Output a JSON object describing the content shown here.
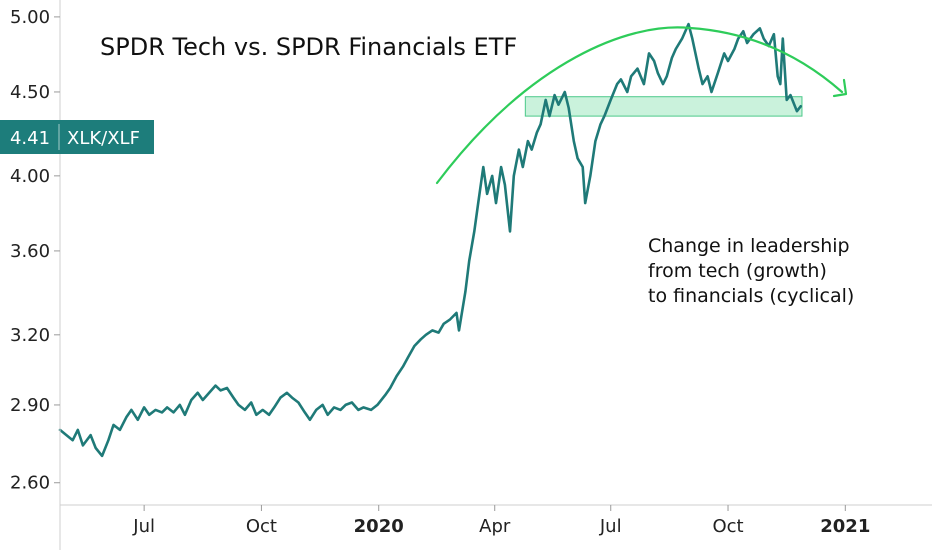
{
  "chart_data": {
    "type": "line",
    "title": "SPDR Tech vs. SPDR Financials ETF",
    "series": [
      {
        "name": "XLK/XLF",
        "color": "#1f7a78",
        "points": [
          [
            "2019-04-26",
            2.8
          ],
          [
            "2019-05-01",
            2.78
          ],
          [
            "2019-05-06",
            2.76
          ],
          [
            "2019-05-10",
            2.8
          ],
          [
            "2019-05-14",
            2.74
          ],
          [
            "2019-05-20",
            2.78
          ],
          [
            "2019-05-24",
            2.73
          ],
          [
            "2019-05-29",
            2.7
          ],
          [
            "2019-06-03",
            2.76
          ],
          [
            "2019-06-07",
            2.82
          ],
          [
            "2019-06-12",
            2.8
          ],
          [
            "2019-06-17",
            2.85
          ],
          [
            "2019-06-21",
            2.88
          ],
          [
            "2019-06-26",
            2.84
          ],
          [
            "2019-07-01",
            2.89
          ],
          [
            "2019-07-05",
            2.86
          ],
          [
            "2019-07-10",
            2.88
          ],
          [
            "2019-07-15",
            2.87
          ],
          [
            "2019-07-19",
            2.89
          ],
          [
            "2019-07-24",
            2.87
          ],
          [
            "2019-07-29",
            2.9
          ],
          [
            "2019-08-02",
            2.86
          ],
          [
            "2019-08-07",
            2.92
          ],
          [
            "2019-08-12",
            2.95
          ],
          [
            "2019-08-16",
            2.92
          ],
          [
            "2019-08-21",
            2.95
          ],
          [
            "2019-08-26",
            2.98
          ],
          [
            "2019-08-30",
            2.96
          ],
          [
            "2019-09-04",
            2.97
          ],
          [
            "2019-09-09",
            2.93
          ],
          [
            "2019-09-13",
            2.9
          ],
          [
            "2019-09-18",
            2.88
          ],
          [
            "2019-09-23",
            2.91
          ],
          [
            "2019-09-27",
            2.86
          ],
          [
            "2019-10-02",
            2.88
          ],
          [
            "2019-10-07",
            2.86
          ],
          [
            "2019-10-11",
            2.89
          ],
          [
            "2019-10-16",
            2.93
          ],
          [
            "2019-10-21",
            2.95
          ],
          [
            "2019-10-25",
            2.93
          ],
          [
            "2019-10-30",
            2.91
          ],
          [
            "2019-11-04",
            2.87
          ],
          [
            "2019-11-08",
            2.84
          ],
          [
            "2019-11-13",
            2.88
          ],
          [
            "2019-11-18",
            2.9
          ],
          [
            "2019-11-22",
            2.86
          ],
          [
            "2019-11-27",
            2.89
          ],
          [
            "2019-12-02",
            2.88
          ],
          [
            "2019-12-06",
            2.9
          ],
          [
            "2019-12-11",
            2.91
          ],
          [
            "2019-12-16",
            2.88
          ],
          [
            "2019-12-20",
            2.89
          ],
          [
            "2019-12-26",
            2.88
          ],
          [
            "2019-12-31",
            2.9
          ],
          [
            "2020-01-06",
            2.94
          ],
          [
            "2020-01-10",
            2.97
          ],
          [
            "2020-01-15",
            3.02
          ],
          [
            "2020-01-20",
            3.06
          ],
          [
            "2020-01-24",
            3.1
          ],
          [
            "2020-01-29",
            3.15
          ],
          [
            "2020-02-03",
            3.18
          ],
          [
            "2020-02-07",
            3.2
          ],
          [
            "2020-02-12",
            3.22
          ],
          [
            "2020-02-17",
            3.21
          ],
          [
            "2020-02-21",
            3.25
          ],
          [
            "2020-02-26",
            3.27
          ],
          [
            "2020-03-02",
            3.3
          ],
          [
            "2020-03-04",
            3.22
          ],
          [
            "2020-03-09",
            3.4
          ],
          [
            "2020-03-12",
            3.55
          ],
          [
            "2020-03-16",
            3.7
          ],
          [
            "2020-03-19",
            3.85
          ],
          [
            "2020-03-23",
            4.05
          ],
          [
            "2020-03-26",
            3.9
          ],
          [
            "2020-03-30",
            4.0
          ],
          [
            "2020-04-02",
            3.85
          ],
          [
            "2020-04-06",
            4.05
          ],
          [
            "2020-04-09",
            3.95
          ],
          [
            "2020-04-13",
            3.7
          ],
          [
            "2020-04-16",
            4.0
          ],
          [
            "2020-04-20",
            4.15
          ],
          [
            "2020-04-23",
            4.05
          ],
          [
            "2020-04-27",
            4.2
          ],
          [
            "2020-04-30",
            4.15
          ],
          [
            "2020-05-04",
            4.25
          ],
          [
            "2020-05-07",
            4.3
          ],
          [
            "2020-05-11",
            4.45
          ],
          [
            "2020-05-14",
            4.35
          ],
          [
            "2020-05-18",
            4.48
          ],
          [
            "2020-05-21",
            4.42
          ],
          [
            "2020-05-26",
            4.5
          ],
          [
            "2020-05-29",
            4.4
          ],
          [
            "2020-06-02",
            4.2
          ],
          [
            "2020-06-05",
            4.1
          ],
          [
            "2020-06-09",
            4.05
          ],
          [
            "2020-06-11",
            3.85
          ],
          [
            "2020-06-15",
            4.0
          ],
          [
            "2020-06-19",
            4.2
          ],
          [
            "2020-06-23",
            4.3
          ],
          [
            "2020-06-26",
            4.35
          ],
          [
            "2020-07-01",
            4.45
          ],
          [
            "2020-07-06",
            4.55
          ],
          [
            "2020-07-09",
            4.58
          ],
          [
            "2020-07-14",
            4.5
          ],
          [
            "2020-07-17",
            4.6
          ],
          [
            "2020-07-22",
            4.65
          ],
          [
            "2020-07-27",
            4.55
          ],
          [
            "2020-07-31",
            4.75
          ],
          [
            "2020-08-04",
            4.7
          ],
          [
            "2020-08-07",
            4.62
          ],
          [
            "2020-08-11",
            4.55
          ],
          [
            "2020-08-14",
            4.6
          ],
          [
            "2020-08-18",
            4.72
          ],
          [
            "2020-08-21",
            4.78
          ],
          [
            "2020-08-26",
            4.85
          ],
          [
            "2020-08-31",
            4.95
          ],
          [
            "2020-09-03",
            4.85
          ],
          [
            "2020-09-08",
            4.65
          ],
          [
            "2020-09-11",
            4.55
          ],
          [
            "2020-09-15",
            4.6
          ],
          [
            "2020-09-18",
            4.5
          ],
          [
            "2020-09-23",
            4.62
          ],
          [
            "2020-09-28",
            4.75
          ],
          [
            "2020-10-01",
            4.7
          ],
          [
            "2020-10-06",
            4.78
          ],
          [
            "2020-10-09",
            4.85
          ],
          [
            "2020-10-13",
            4.9
          ],
          [
            "2020-10-16",
            4.82
          ],
          [
            "2020-10-21",
            4.88
          ],
          [
            "2020-10-26",
            4.92
          ],
          [
            "2020-10-29",
            4.85
          ],
          [
            "2020-11-02",
            4.8
          ],
          [
            "2020-11-06",
            4.88
          ],
          [
            "2020-11-09",
            4.6
          ],
          [
            "2020-11-11",
            4.55
          ],
          [
            "2020-11-13",
            4.85
          ],
          [
            "2020-11-16",
            4.45
          ],
          [
            "2020-11-19",
            4.48
          ],
          [
            "2020-11-24",
            4.38
          ],
          [
            "2020-11-27",
            4.41
          ]
        ]
      }
    ],
    "y_ticks": [
      "5.00",
      "4.50",
      "4.00",
      "3.60",
      "3.20",
      "2.90",
      "2.60"
    ],
    "x_ticks": [
      {
        "date": "2019-07-01",
        "label": "Jul",
        "bold": false
      },
      {
        "date": "2019-10-01",
        "label": "Oct",
        "bold": false
      },
      {
        "date": "2020-01-01",
        "label": "2020",
        "bold": true
      },
      {
        "date": "2020-04-01",
        "label": "Apr",
        "bold": false
      },
      {
        "date": "2020-07-01",
        "label": "Jul",
        "bold": false
      },
      {
        "date": "2020-10-01",
        "label": "Oct",
        "bold": false
      },
      {
        "date": "2021-01-01",
        "label": "2021",
        "bold": true
      }
    ],
    "y_scale": "log",
    "ylim": [
      2.52,
      5.12
    ],
    "xlim": [
      "2019-04-26",
      "2021-03-10"
    ],
    "grid": false,
    "last_value_badge": {
      "value": "4.41",
      "series_label": "XLK/XLF",
      "color": "#1d7d7b"
    },
    "support_zone": {
      "x_start": "2020-04-25",
      "x_end": "2020-11-28",
      "y_low": 4.35,
      "y_high": 4.47,
      "color": "#9fe8c0"
    },
    "arc_arrow_color": "#2ecc5a",
    "annotation": {
      "lines": [
        "Change in leadership",
        "from tech (growth)",
        "to financials (cyclical)"
      ]
    }
  }
}
